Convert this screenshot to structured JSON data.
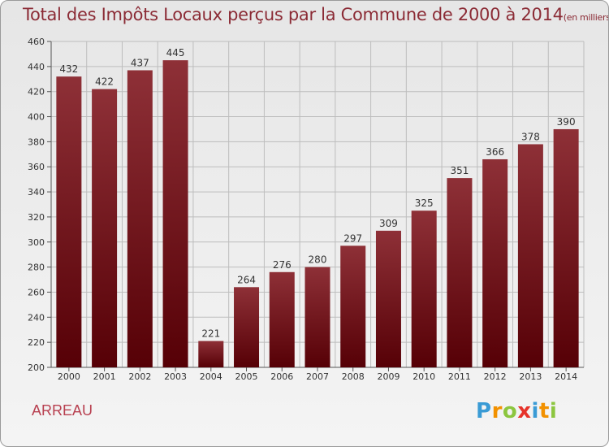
{
  "title": "Total des Impôts Locaux perçus par la Commune de 2000 à 2014",
  "title_unit": "(en milliers d'€)",
  "commune": "ARREAU",
  "brand": {
    "letters": [
      {
        "ch": "P",
        "color": "#3a9bd5"
      },
      {
        "ch": "r",
        "color": "#f29100"
      },
      {
        "ch": "o",
        "color": "#8cc63f"
      },
      {
        "ch": "x",
        "color": "#e6332a"
      },
      {
        "ch": "i",
        "color": "#3a9bd5"
      },
      {
        "ch": "t",
        "color": "#f29100"
      },
      {
        "ch": "i",
        "color": "#8cc63f"
      }
    ]
  },
  "colors": {
    "bar_top": "#8e3037",
    "bar_bottom": "#560006",
    "grid": "#bdbdbd",
    "title": "#8b2b35"
  },
  "chart_data": {
    "type": "bar",
    "categories": [
      "2000",
      "2001",
      "2002",
      "2003",
      "2004",
      "2005",
      "2006",
      "2007",
      "2008",
      "2009",
      "2010",
      "2011",
      "2012",
      "2013",
      "2014"
    ],
    "values": [
      432,
      422,
      437,
      445,
      221,
      264,
      276,
      280,
      297,
      309,
      325,
      351,
      366,
      378,
      390
    ],
    "ylim": [
      200,
      460
    ],
    "yticks": [
      200,
      220,
      240,
      260,
      280,
      300,
      320,
      340,
      360,
      380,
      400,
      420,
      440,
      460
    ],
    "grid": true,
    "xlabel": "",
    "ylabel": ""
  }
}
